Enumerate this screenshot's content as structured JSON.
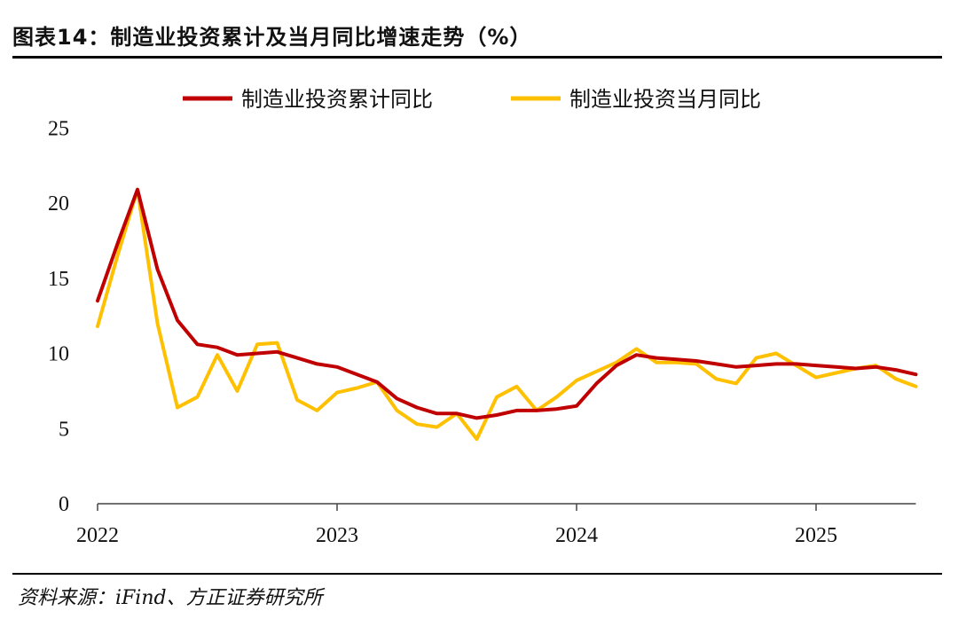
{
  "title": "图表14：制造业投资累计及当月同比增速走势（%）",
  "source": "资料来源：iFind、方正证券研究所",
  "chart_data": {
    "type": "line",
    "ylim": [
      0,
      25
    ],
    "yticks": [
      "0",
      "5",
      "10",
      "15",
      "20",
      "25"
    ],
    "xticks": [
      "2022",
      "2023",
      "2024",
      "2025"
    ],
    "grid": false,
    "legend_position": "top",
    "series": [
      {
        "name": "制造业投资累计同比",
        "color": "#C00000",
        "values": [
          13.5,
          17.3,
          20.9,
          15.6,
          12.2,
          10.6,
          10.4,
          9.9,
          10.0,
          10.1,
          9.7,
          9.3,
          9.1,
          8.6,
          8.1,
          7.0,
          6.4,
          6.0,
          6.0,
          5.7,
          5.9,
          6.2,
          6.2,
          6.3,
          6.5,
          8.0,
          9.2,
          9.9,
          9.7,
          9.6,
          9.5,
          9.3,
          9.1,
          9.2,
          9.3,
          9.3,
          9.2,
          9.1,
          9.0,
          9.1,
          8.9,
          8.6
        ]
      },
      {
        "name": "制造业投资当月同比",
        "color": "#FFC000",
        "values": [
          11.8,
          16.5,
          20.9,
          12.0,
          6.4,
          7.1,
          9.9,
          7.5,
          10.6,
          10.7,
          6.9,
          6.2,
          7.4,
          7.7,
          8.1,
          6.2,
          5.3,
          5.1,
          6.0,
          4.3,
          7.1,
          7.8,
          6.2,
          7.1,
          8.2,
          8.8,
          9.4,
          10.3,
          9.4,
          9.4,
          9.3,
          8.3,
          8.0,
          9.7,
          10.0,
          9.2,
          8.4,
          8.7,
          9.0,
          9.2,
          8.3,
          7.8
        ]
      }
    ]
  }
}
